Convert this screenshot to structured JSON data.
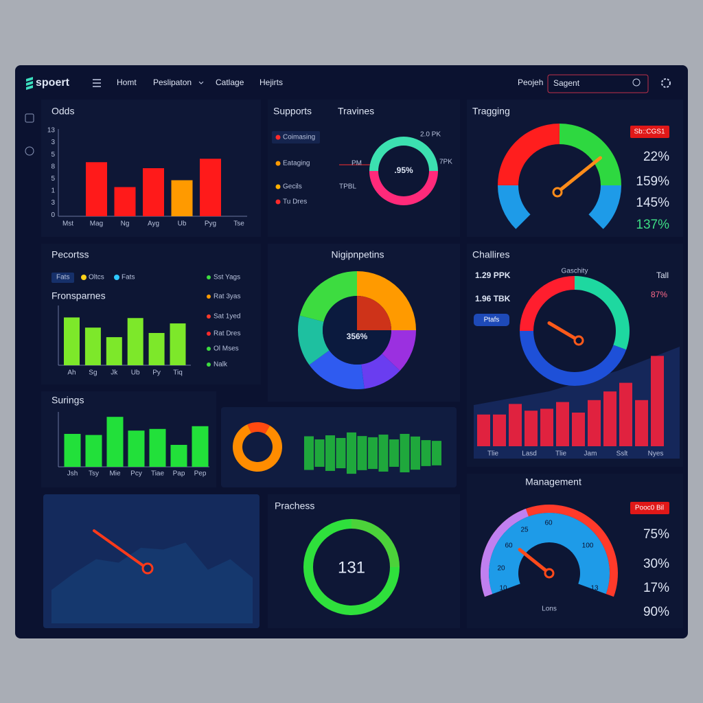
{
  "nav": {
    "brand": "spoert",
    "links": [
      "Homt",
      "Peslipaton",
      "Catlage",
      "Hejirts"
    ],
    "project": "Peojeh",
    "search": "Sagent"
  },
  "odds": {
    "title": "Odds",
    "y_labels": [
      "13",
      "3",
      "5",
      "8",
      "5",
      "1",
      "3",
      "0"
    ],
    "categories": [
      "Mst",
      "Mag",
      "Ng",
      "Ayg",
      "Ub",
      "Pyg",
      "Tse"
    ],
    "values": [
      null,
      63,
      34,
      56,
      42,
      67,
      null
    ],
    "colors": [
      null,
      "#ff1a1a",
      "#ff1a1a",
      "#ff1a1a",
      "#ff9a00",
      "#ff1a1a",
      null
    ],
    "ylim": [
      0,
      100
    ]
  },
  "supports": {
    "title": "Supports",
    "items": [
      {
        "label": "Coimasing",
        "color": "#ff2a2a"
      },
      {
        "label": "Eataging",
        "color": "#ff9a00"
      },
      {
        "label": "Gecils",
        "color": "#ffb000"
      },
      {
        "label": "Tu Dres",
        "color": "#ff2a2a"
      }
    ]
  },
  "travines": {
    "title": "Travines",
    "center": ".95%",
    "labels": [
      "2.0 PK",
      "7PK",
      "PM",
      "TPBL"
    ],
    "segments": [
      {
        "value": 50,
        "color": "#3ce0b0"
      },
      {
        "value": 50,
        "color": "#ff2a7a"
      }
    ]
  },
  "tragging": {
    "title": "Tragging",
    "badge": "Sb::CGS1",
    "needle": 69,
    "range": [
      0,
      100
    ],
    "stats": [
      {
        "text": "22%",
        "color": "#dfe6f5"
      },
      {
        "text": "159%",
        "color": "#dfe6f5"
      },
      {
        "text": "145%",
        "color": "#dfe6f5"
      },
      {
        "text": "137%",
        "color": "#3ddc84"
      }
    ]
  },
  "pecortss": {
    "title": "Pecortss",
    "chips": [
      {
        "label": "Fats",
        "color": null
      },
      {
        "label": "Oltcs",
        "color": "#ffd21a"
      },
      {
        "label": "Fats",
        "color": "#2ec8ff"
      }
    ],
    "subtitle": "Fronsparnes",
    "categories": [
      "Ah",
      "Sg",
      "Jk",
      "Ub",
      "Py",
      "Tiq"
    ],
    "values": [
      80,
      63,
      47,
      79,
      54,
      70
    ],
    "color": "#7de82a",
    "ylim": [
      0,
      100
    ],
    "list": [
      {
        "label": "Sst Yags",
        "color": "#3ddc40"
      },
      {
        "label": "Rat 3yas",
        "color": "#ff9a00"
      },
      {
        "label": "Sat 1yed",
        "color": "#ff3a2a"
      },
      {
        "label": "Rat Dres",
        "color": "#ff2a2a"
      },
      {
        "label": "Ol Mses",
        "color": "#3ddc40"
      },
      {
        "label": "Nalk",
        "color": "#3ddc40"
      }
    ]
  },
  "nigipnpetins": {
    "title": "Nigipnpetins",
    "center": "356%",
    "segments": [
      {
        "value": 25,
        "color": "#ff9a00"
      },
      {
        "value": 12,
        "color": "#9b30e0"
      },
      {
        "value": 11,
        "color": "#6a3df0"
      },
      {
        "value": 17,
        "color": "#2f5bf0"
      },
      {
        "value": 14,
        "color": "#1ec0a0"
      },
      {
        "value": 21,
        "color": "#3ddc40"
      }
    ]
  },
  "challires": {
    "title": "Challires",
    "stats": [
      "1.29 PPK",
      "1.96 TBK"
    ],
    "chip": "Ptafs",
    "gauge_title": "Gaschity",
    "tall": "Tall",
    "tall_value": "87%",
    "needle": 28,
    "range": [
      0,
      100
    ],
    "x_labels": [
      "Tlie",
      "Lasd",
      "Tlie",
      "Jam",
      "Sslt",
      "Nyes"
    ],
    "values": [
      33,
      33,
      44,
      37,
      39,
      46,
      35,
      48,
      57,
      66,
      48,
      94
    ],
    "color": "#e0223f",
    "ylim": [
      0,
      100
    ]
  },
  "surings": {
    "title": "Surings",
    "categories": [
      "Jsh",
      "Tsy",
      "Mie",
      "Pcy",
      "Tiae",
      "Pap",
      "Pep"
    ],
    "values": [
      60,
      58,
      91,
      66,
      69,
      40,
      74
    ],
    "color": "#22e03a",
    "ylim": [
      0,
      100
    ]
  },
  "mixed": {
    "ring": [
      {
        "value": 85,
        "color": "#ff8c00"
      },
      {
        "value": 15,
        "color": "#ff4a10"
      }
    ],
    "values": [
      70,
      57,
      74,
      63,
      86,
      71,
      66,
      77,
      57,
      80,
      69,
      54,
      51
    ],
    "color": "#1fa83c",
    "ylim": [
      0,
      100
    ]
  },
  "area": {
    "values": [
      38,
      57,
      73,
      69,
      86,
      84,
      92,
      61,
      73,
      52
    ],
    "ylim": [
      0,
      100
    ],
    "color": "#15386e"
  },
  "prachess": {
    "title": "Prachess",
    "center": "131",
    "segments": [
      {
        "value": 25,
        "color": "#4cd23a"
      },
      {
        "value": 75,
        "color": "#2fe03c"
      }
    ]
  },
  "management": {
    "title": "Management",
    "badge": "Pooc0 Bil",
    "needle": 31,
    "range": [
      0,
      100
    ],
    "dial_labels": [
      "25",
      "60",
      "60",
      "100",
      "20",
      "10",
      "13"
    ],
    "dial_caption": "Lons",
    "stats": [
      "75%",
      "30%",
      "17%",
      "90%"
    ]
  }
}
